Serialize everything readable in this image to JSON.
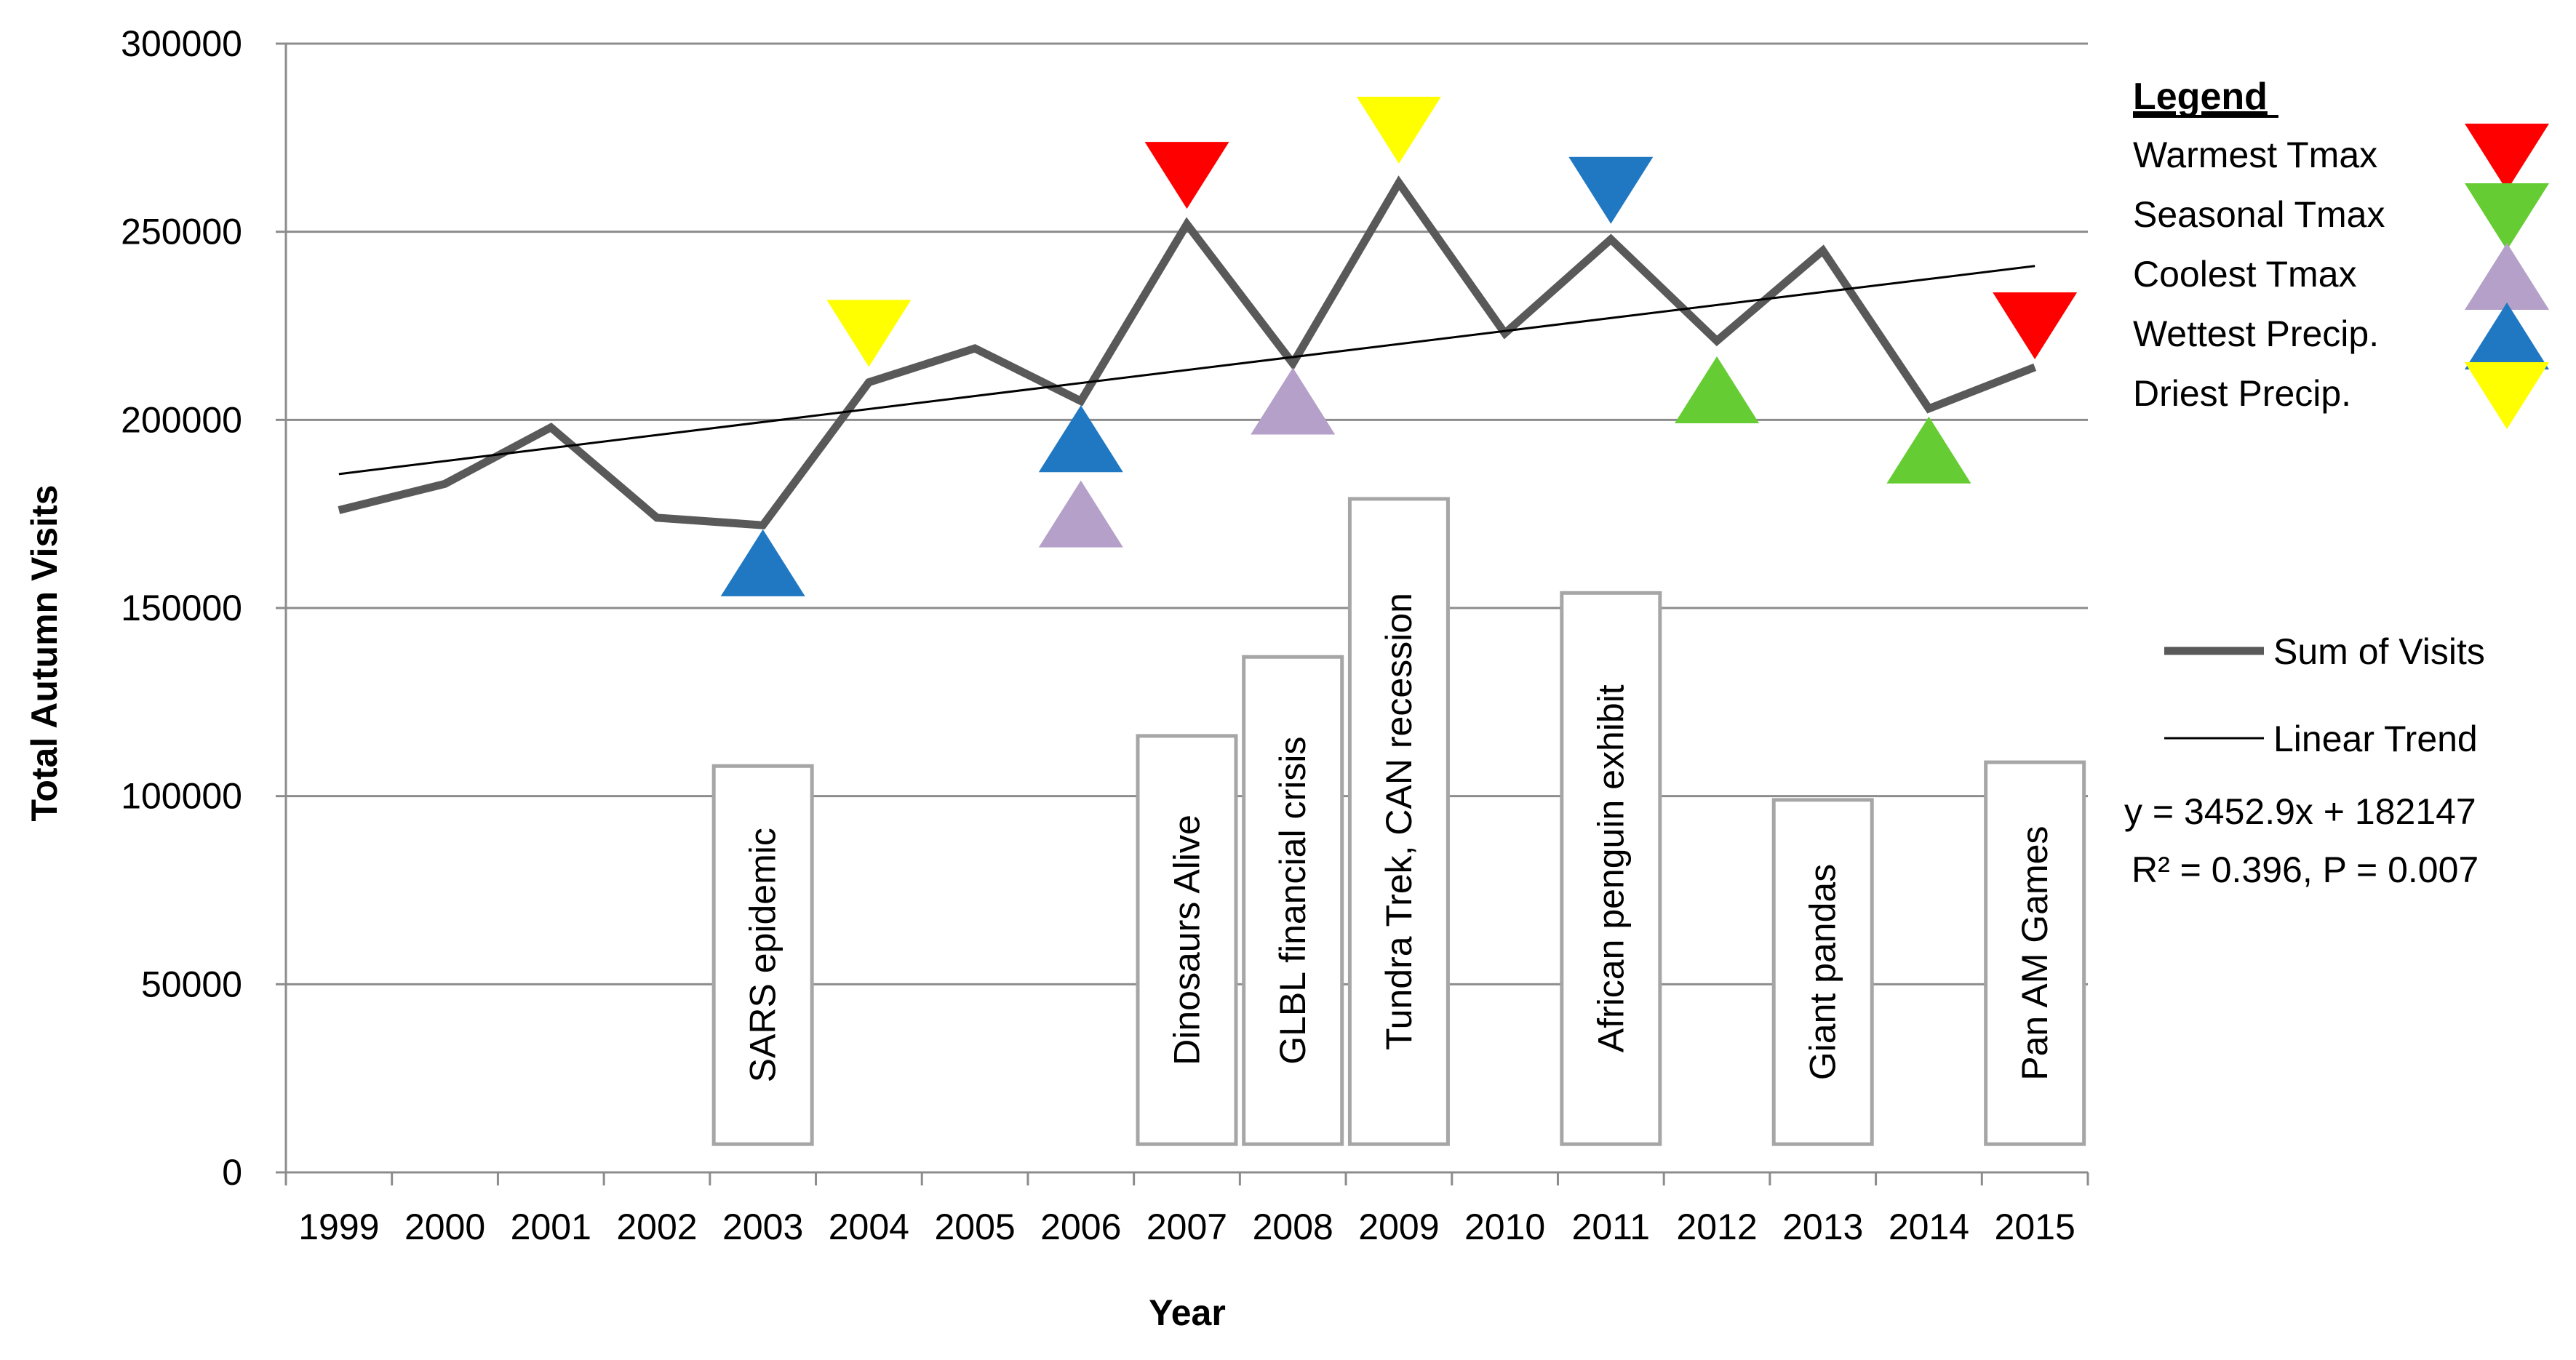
{
  "chart_data": {
    "type": "line",
    "xlabel": "Year",
    "ylabel": "Total Autumn Visits",
    "ylim": [
      0,
      300000
    ],
    "y_ticks": [
      "0",
      "50000",
      "100000",
      "150000",
      "200000",
      "250000",
      "300000"
    ],
    "grid": "horizontal",
    "categories": [
      "1999",
      "2000",
      "2001",
      "2002",
      "2003",
      "2004",
      "2005",
      "2006",
      "2007",
      "2008",
      "2009",
      "2010",
      "2011",
      "2012",
      "2013",
      "2014",
      "2015"
    ],
    "series": [
      {
        "name": "Sum of Visits",
        "color": "#595959",
        "values": [
          176000,
          183000,
          198000,
          174000,
          172000,
          210000,
          219000,
          205000,
          252000,
          215000,
          263000,
          223000,
          248000,
          221000,
          245000,
          203000,
          214000
        ]
      },
      {
        "name": "Linear Trend",
        "color": "#000000",
        "start": 185600,
        "end": 240900
      }
    ],
    "markers": [
      {
        "category": "2003",
        "type": "Wettest Precip.",
        "direction": "up",
        "value": 162000
      },
      {
        "category": "2004",
        "type": "Driest Precip.",
        "direction": "down",
        "value": 223000
      },
      {
        "category": "2006",
        "type": "Wettest Precip.",
        "direction": "up",
        "value": 195000
      },
      {
        "category": "2006",
        "type": "Coolest Tmax",
        "direction": "up",
        "value": 175000
      },
      {
        "category": "2007",
        "type": "Warmest Tmax",
        "direction": "down",
        "value": 265000
      },
      {
        "category": "2008",
        "type": "Coolest Tmax",
        "direction": "up",
        "value": 205000
      },
      {
        "category": "2009",
        "type": "Driest Precip.",
        "direction": "down",
        "value": 277000
      },
      {
        "category": "2011",
        "type": "Wettest Precip.",
        "direction": "down",
        "value": 261000
      },
      {
        "category": "2012",
        "type": "Seasonal Tmax",
        "direction": "up",
        "value": 208000
      },
      {
        "category": "2014",
        "type": "Seasonal Tmax",
        "direction": "up",
        "value": 192000
      },
      {
        "category": "2015",
        "type": "Warmest Tmax",
        "direction": "down",
        "value": 225000
      }
    ],
    "events": [
      {
        "category": "2003",
        "label": "SARS epidemic",
        "top": 108000
      },
      {
        "category": "2007",
        "label": "Dinosaurs Alive",
        "top": 116000
      },
      {
        "category": "2008",
        "label": "GLBL financial crisis",
        "top": 137000
      },
      {
        "category": "2009",
        "label": "Tundra Trek, CAN recession",
        "top": 179000
      },
      {
        "category": "2011",
        "label": "African penguin exhibit",
        "top": 154000
      },
      {
        "category": "2013",
        "label": "Giant  pandas",
        "top": 99000
      },
      {
        "category": "2015",
        "label": "Pan AM Games",
        "top": 109000
      }
    ],
    "legend": {
      "title": "Legend",
      "position": "right",
      "marker_items": [
        {
          "label": "Warmest Tmax",
          "color": "#ff0000",
          "direction": "down"
        },
        {
          "label": "Seasonal Tmax",
          "color": "#66cc33",
          "direction": "down"
        },
        {
          "label": "Coolest Tmax",
          "color": "#b4a0c8",
          "direction": "up"
        },
        {
          "label": "Wettest Precip.",
          "color": "#1f78c1",
          "direction": "up"
        },
        {
          "label": "Driest Precip.",
          "color": "#ffff00",
          "direction": "down"
        }
      ],
      "line_items": [
        {
          "label": "Sum of Visits",
          "style": "thick"
        },
        {
          "label": "Linear Trend",
          "style": "thin"
        }
      ],
      "equation": "y = 3452.9x + 182147",
      "stats": "R² = 0.396, P = 0.007"
    }
  }
}
